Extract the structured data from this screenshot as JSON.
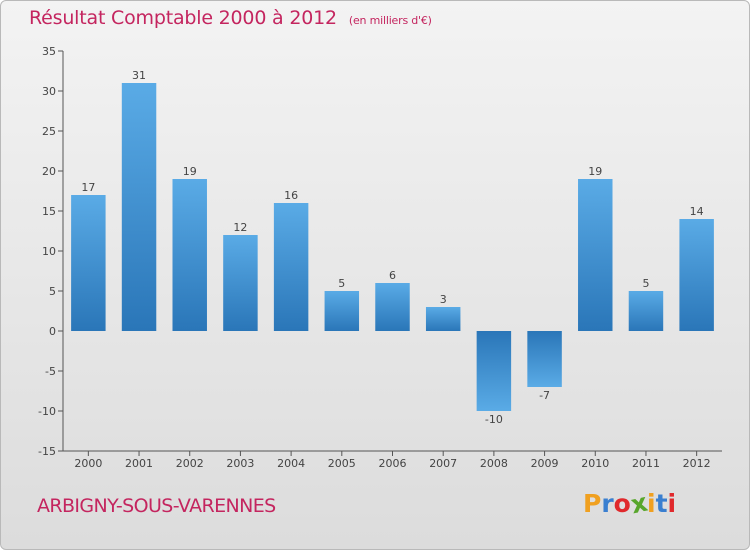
{
  "header": {
    "title": "Résultat Comptable 2000 à 2012",
    "subtitle": "(en milliers d'€)"
  },
  "footer": {
    "commune": "ARBIGNY-SOUS-VARENNES",
    "logo_letters": [
      "P",
      "r",
      "o",
      "x",
      "i",
      "t",
      "i"
    ],
    "logo_colors": [
      "#f0a020",
      "#3a7fd0",
      "#e0292c",
      "#58a62c",
      "#f0a020",
      "#3a7fd0",
      "#e0292c"
    ]
  },
  "chart_data": {
    "type": "bar",
    "title": "Résultat Comptable 2000 à 2012",
    "subtitle": "(en milliers d'€)",
    "categories": [
      "2000",
      "2001",
      "2002",
      "2003",
      "2004",
      "2005",
      "2006",
      "2007",
      "2008",
      "2009",
      "2010",
      "2011",
      "2012"
    ],
    "values": [
      17,
      31,
      19,
      12,
      16,
      5,
      6,
      3,
      -10,
      -7,
      19,
      5,
      14
    ],
    "value_labels": [
      "17",
      "31",
      "19",
      "12",
      "16",
      "5",
      "6",
      "3",
      "-10",
      "-7",
      "19",
      "5",
      "14"
    ],
    "xlabel": "",
    "ylabel": "",
    "ylim": [
      -15,
      35
    ],
    "yticks": [
      -15,
      -10,
      -5,
      0,
      5,
      10,
      15,
      20,
      25,
      30,
      35
    ],
    "ytick_labels": [
      "-15",
      "-10",
      "-5",
      "0",
      "5",
      "10",
      "15",
      "20",
      "25",
      "30",
      "35"
    ],
    "grid": false,
    "bar_color_light": "#5aabe6",
    "bar_color_dark": "#2a76b8"
  }
}
